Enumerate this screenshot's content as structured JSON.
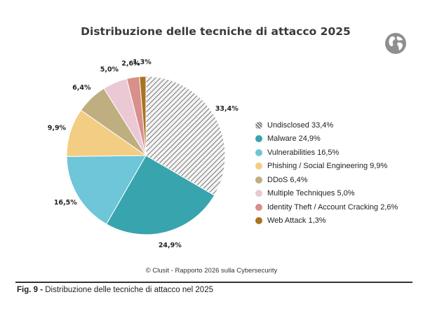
{
  "chart_data": {
    "type": "pie",
    "title": "Distribuzione delle tecniche di attacco 2025",
    "categories": [
      "Undisclosed",
      "Malware",
      "Vulnerabilities",
      "Phishing / Social Engineering",
      "DDoS",
      "Multiple Techniques",
      "Identity Theft / Account Cracking",
      "Web Attack"
    ],
    "values": [
      33.4,
      24.9,
      16.5,
      9.9,
      6.4,
      5.0,
      2.6,
      1.3
    ],
    "slice_labels": [
      "33,4%",
      "24,9%",
      "16,5%",
      "9,9%",
      "6,4%",
      "5,0%",
      "2,6%",
      "1,3%"
    ],
    "legend_entries": [
      "Undisclosed 33,4%",
      "Malware 24,9%",
      "Vulnerabilities 16,5%",
      "Phishing / Social Engineering 9,9%",
      "DDoS 6,4%",
      "Multiple Techniques 5,0%",
      "Identity Theft / Account Cracking 2,6%",
      "Web Attack 1,3%"
    ],
    "colors": [
      "hatched",
      "#37a4ae",
      "#6ec6d8",
      "#f2cd83",
      "#bfae80",
      "#eac9d4",
      "#d98f8a",
      "#a8741f"
    ],
    "legend_position": "right",
    "start_angle": "top",
    "direction": "clockwise"
  },
  "source_text": "© Clusit - Rapporto 2026 sulla Cybersecurity",
  "caption": {
    "label": "Fig. 9 - ",
    "text": "Distribuzione delle tecniche di attacco nel 2025"
  },
  "icon": "globe-icon"
}
